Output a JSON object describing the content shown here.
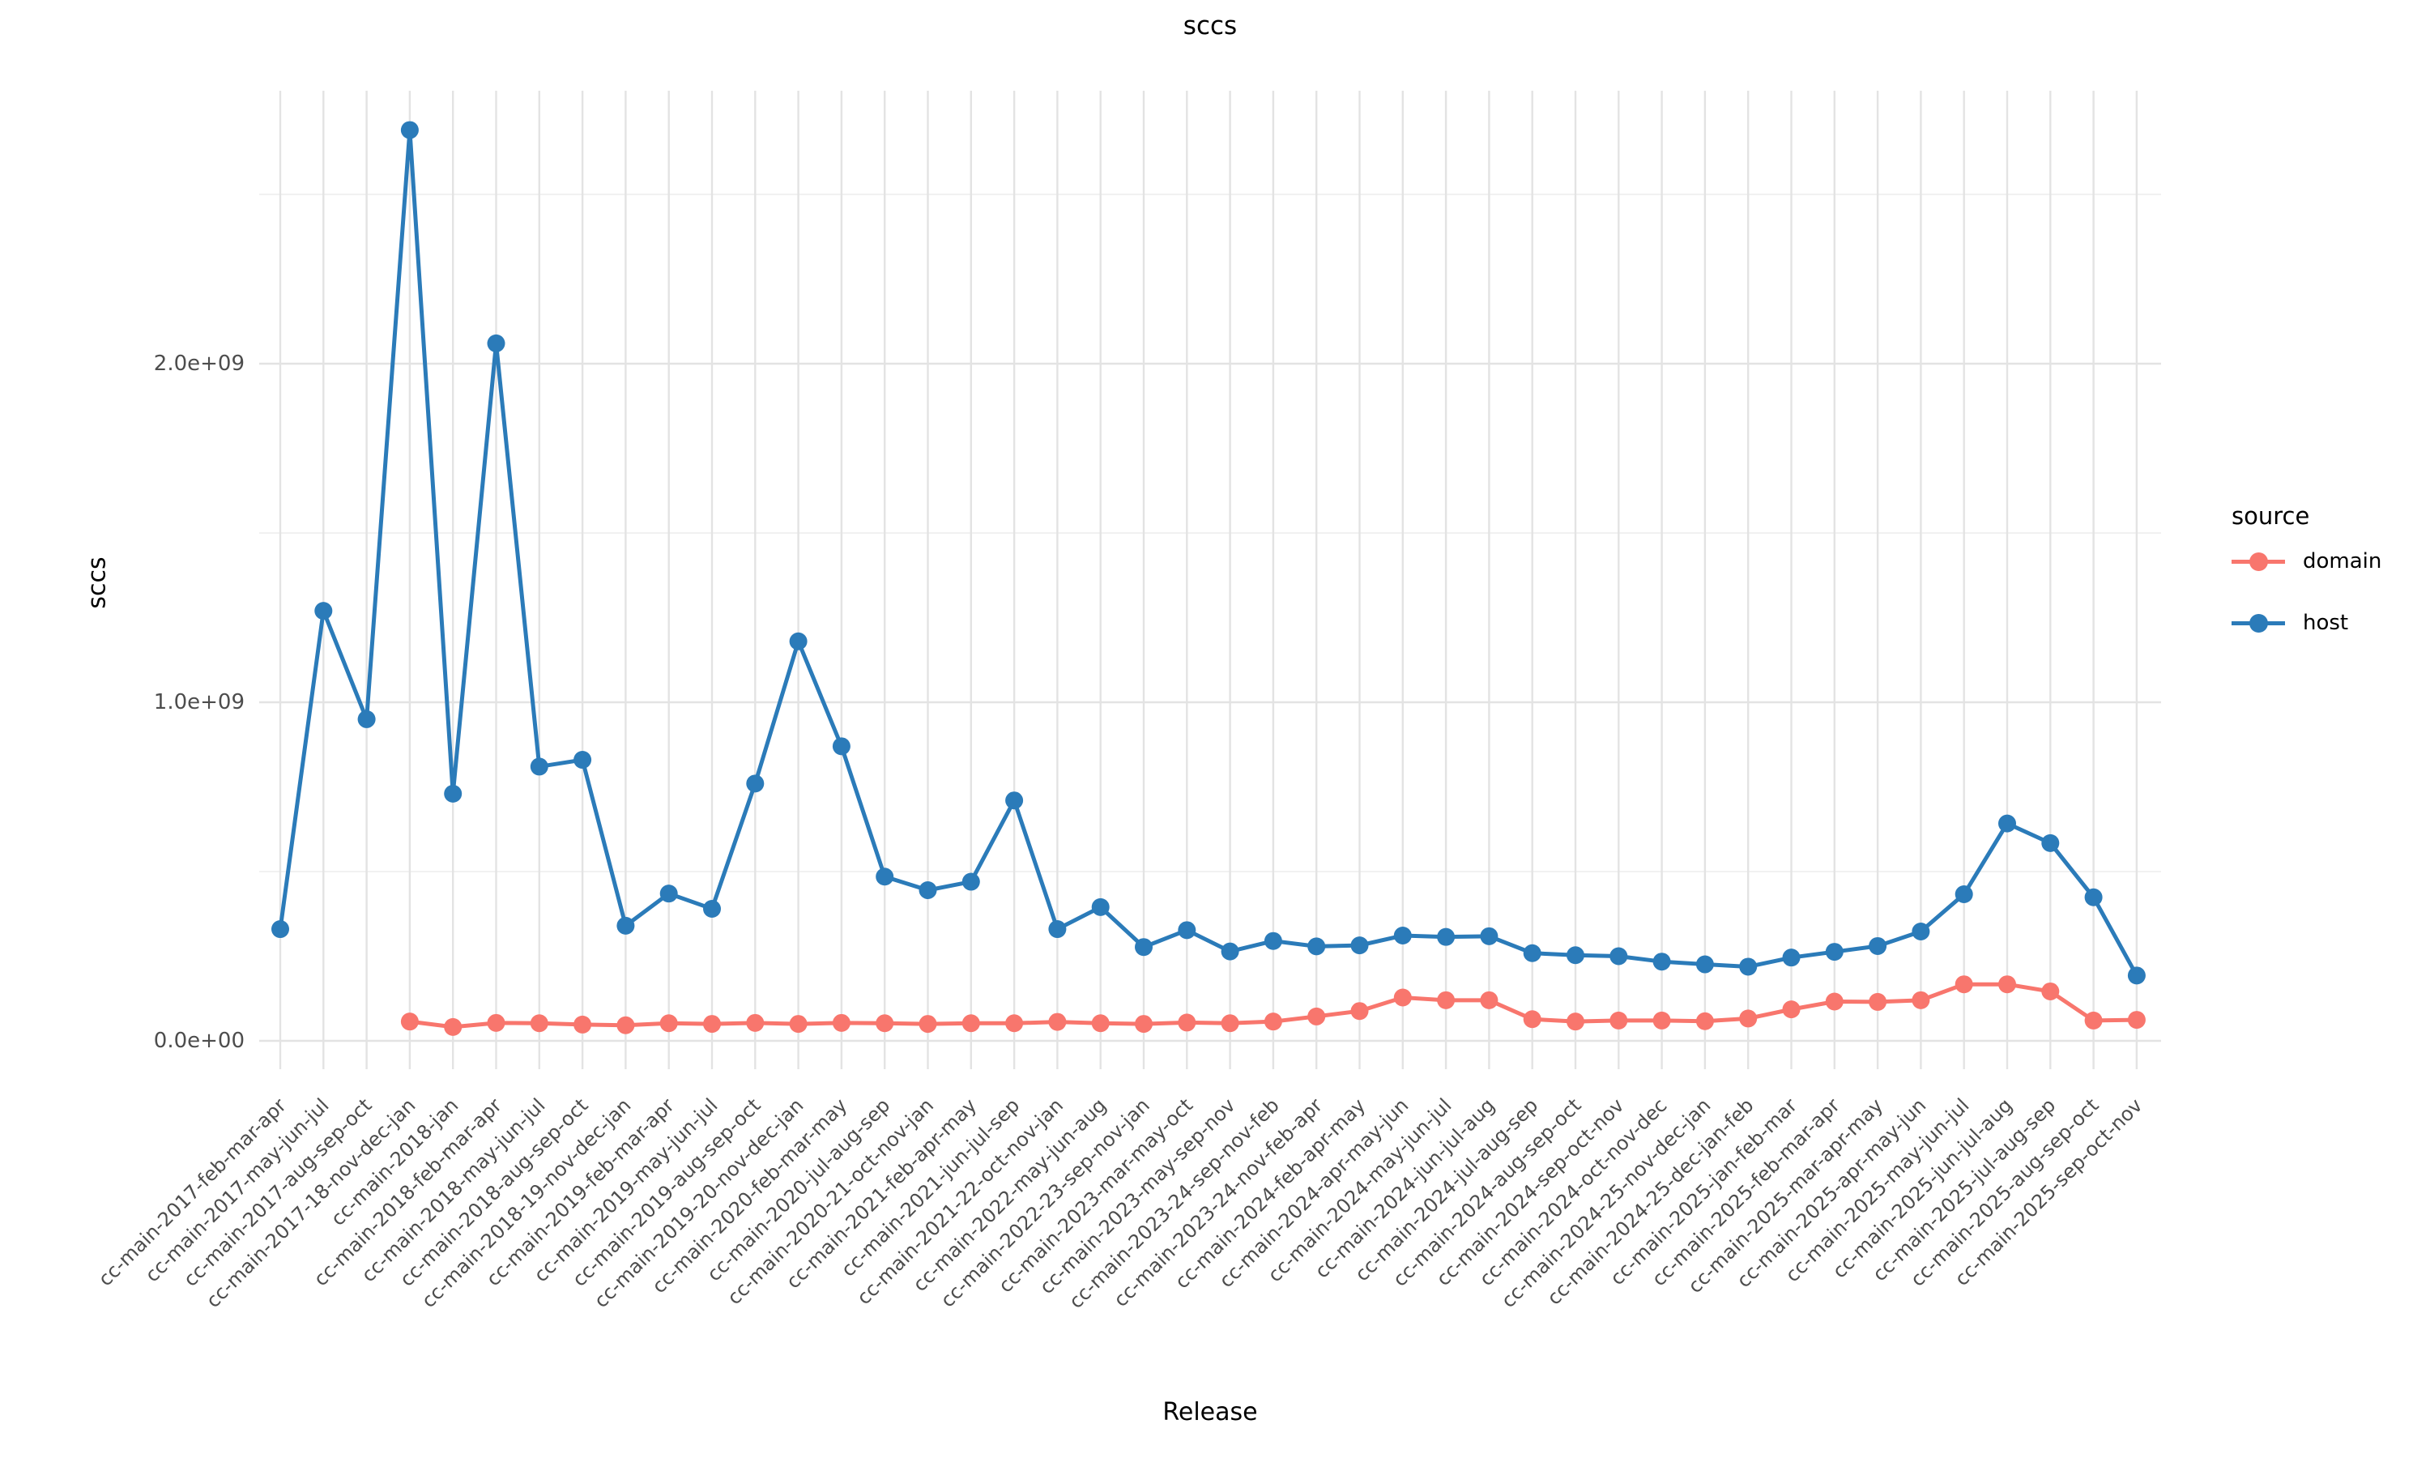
{
  "chart_data": {
    "type": "line",
    "title": "sccs",
    "xlabel": "Release",
    "ylabel": "sccs",
    "ylim": [
      0,
      2800000000
    ],
    "grid": true,
    "legend_position": "right",
    "legend_title": "source",
    "y_major_ticks": [
      {
        "label": "0.0e+00",
        "value": 0
      },
      {
        "label": "1.0e+09",
        "value": 1000000000
      },
      {
        "label": "2.0e+09",
        "value": 2000000000
      }
    ],
    "y_minor_ticks": [
      500000000,
      1500000000,
      2500000000
    ],
    "categories": [
      "cc-main-2017-feb-mar-apr",
      "cc-main-2017-may-jun-jul",
      "cc-main-2017-aug-sep-oct",
      "cc-main-2017-18-nov-dec-jan",
      "cc-main-2018-jan",
      "cc-main-2018-feb-mar-apr",
      "cc-main-2018-may-jun-jul",
      "cc-main-2018-aug-sep-oct",
      "cc-main-2018-19-nov-dec-jan",
      "cc-main-2019-feb-mar-apr",
      "cc-main-2019-may-jun-jul",
      "cc-main-2019-aug-sep-oct",
      "cc-main-2019-20-nov-dec-jan",
      "cc-main-2020-feb-mar-may",
      "cc-main-2020-jul-aug-sep",
      "cc-main-2020-21-oct-nov-jan",
      "cc-main-2021-feb-apr-may",
      "cc-main-2021-jun-jul-sep",
      "cc-main-2021-22-oct-nov-jan",
      "cc-main-2022-may-jun-aug",
      "cc-main-2022-23-sep-nov-jan",
      "cc-main-2023-mar-may-oct",
      "cc-main-2023-may-sep-nov",
      "cc-main-2023-24-sep-nov-feb",
      "cc-main-2023-24-nov-feb-apr",
      "cc-main-2024-feb-apr-may",
      "cc-main-2024-apr-may-jun",
      "cc-main-2024-may-jun-jul",
      "cc-main-2024-jun-jul-aug",
      "cc-main-2024-jul-aug-sep",
      "cc-main-2024-aug-sep-oct",
      "cc-main-2024-sep-oct-nov",
      "cc-main-2024-oct-nov-dec",
      "cc-main-2024-25-nov-dec-jan",
      "cc-main-2024-25-dec-jan-feb",
      "cc-main-2025-jan-feb-mar",
      "cc-main-2025-feb-mar-apr",
      "cc-main-2025-mar-apr-may",
      "cc-main-2025-apr-may-jun",
      "cc-main-2025-may-jun-jul",
      "cc-main-2025-jun-jul-aug",
      "cc-main-2025-jul-aug-sep",
      "cc-main-2025-aug-sep-oct",
      "cc-main-2025-sep-oct-nov"
    ],
    "series": [
      {
        "name": "domain",
        "color": "#F8766D",
        "values": [
          null,
          null,
          null,
          57000000,
          41000000,
          53000000,
          52000000,
          48000000,
          46000000,
          52000000,
          50000000,
          53000000,
          50000000,
          53000000,
          52000000,
          50000000,
          52000000,
          52000000,
          56000000,
          52000000,
          50000000,
          54000000,
          52000000,
          57000000,
          72000000,
          88000000,
          128000000,
          120000000,
          120000000,
          64000000,
          57000000,
          60000000,
          60000000,
          58000000,
          66000000,
          93000000,
          116000000,
          115000000,
          120000000,
          167000000,
          167000000,
          146000000,
          60000000,
          62000000
        ]
      },
      {
        "name": "host",
        "color": "#2B7BB9",
        "values": [
          330000000,
          1270000000,
          950000000,
          2690000000,
          730000000,
          2060000000,
          810000000,
          830000000,
          340000000,
          435000000,
          390000000,
          760000000,
          1180000000,
          870000000,
          485000000,
          445000000,
          470000000,
          710000000,
          330000000,
          395000000,
          277000000,
          327000000,
          264000000,
          295000000,
          279000000,
          282000000,
          311000000,
          307000000,
          309000000,
          259000000,
          253000000,
          250000000,
          234000000,
          226000000,
          219000000,
          246000000,
          263000000,
          280000000,
          323000000,
          433000000,
          642000000,
          584000000,
          424000000,
          193000000
        ]
      }
    ],
    "style": {
      "grid_major_color": "#e3e3e3",
      "grid_minor_color": "#efefef",
      "axis_text_color": "#4d4d4d",
      "background": "#ffffff",
      "point_radius": 11,
      "line_width": 5
    }
  },
  "titles": {
    "main": "sccs",
    "x": "Release",
    "y": "sccs"
  },
  "legend": {
    "title": "source",
    "items": [
      {
        "label": "domain",
        "color": "#F8766D"
      },
      {
        "label": "host",
        "color": "#2B7BB9"
      }
    ]
  }
}
